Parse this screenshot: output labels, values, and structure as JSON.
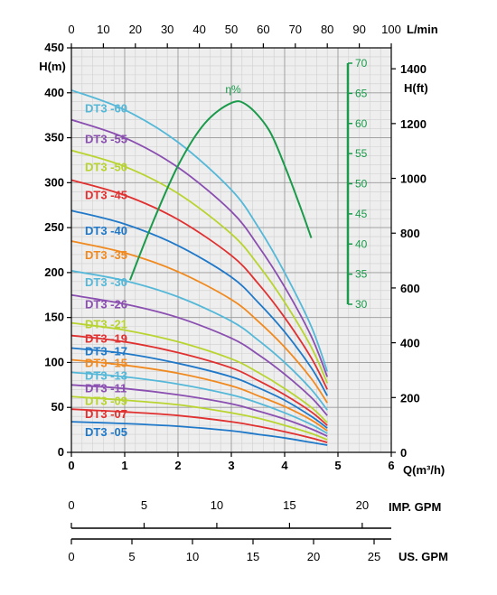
{
  "chart_data": {
    "type": "line",
    "title": "",
    "xlabel": "Q(m³/h)",
    "ylabel": "H(m)",
    "xlim": [
      0,
      6
    ],
    "ylim": [
      0,
      450
    ],
    "x_ticks": [
      0,
      1,
      2,
      3,
      4,
      5,
      6
    ],
    "y_ticks": [
      0,
      50,
      100,
      150,
      200,
      250,
      300,
      350,
      400,
      450
    ],
    "top_axis": {
      "label": "L/min",
      "ticks": [
        0,
        10,
        20,
        30,
        40,
        50,
        60,
        70,
        80,
        90,
        100
      ]
    },
    "right_axis": {
      "label": "H(ft)",
      "ticks": [
        0,
        200,
        400,
        600,
        800,
        1000,
        1200,
        1400
      ]
    },
    "bottom_axis_imp": {
      "label": "IMP. GPM",
      "ticks": [
        0,
        5,
        10,
        15,
        20
      ]
    },
    "bottom_axis_us": {
      "label": "US. GPM",
      "ticks": [
        0,
        5,
        10,
        15,
        20,
        25
      ]
    },
    "grid": true,
    "series": [
      {
        "name": "DT3 -05",
        "color": "#1f78c8",
        "label_h": 22,
        "x": [
          0,
          1,
          2,
          3,
          3.5,
          4,
          4.5,
          4.8
        ],
        "values": [
          34,
          32,
          29,
          24,
          20,
          16,
          11,
          8
        ]
      },
      {
        "name": "DT3 -07",
        "color": "#e03030",
        "label_h": 42,
        "x": [
          0,
          1,
          2,
          3,
          3.5,
          4,
          4.5,
          4.8
        ],
        "values": [
          48,
          45,
          41,
          34,
          29,
          23,
          16,
          11
        ]
      },
      {
        "name": "DT3 -09",
        "color": "#b8d430",
        "label_h": 57,
        "x": [
          0,
          1,
          2,
          3,
          3.5,
          4,
          4.5,
          4.8
        ],
        "values": [
          62,
          58,
          53,
          44,
          38,
          30,
          21,
          14
        ]
      },
      {
        "name": "DT3 -11",
        "color": "#8a4fb0",
        "label_h": 71,
        "x": [
          0,
          1,
          2,
          3,
          3.5,
          4,
          4.5,
          4.8
        ],
        "values": [
          75,
          71,
          64,
          54,
          46,
          37,
          26,
          18
        ]
      },
      {
        "name": "DT3 -13",
        "color": "#55b8d8",
        "label_h": 85,
        "x": [
          0,
          1,
          2,
          3,
          3.5,
          4,
          4.5,
          4.8
        ],
        "values": [
          89,
          84,
          76,
          64,
          55,
          44,
          31,
          21
        ]
      },
      {
        "name": "DT3 -15",
        "color": "#f08a20",
        "label_h": 99,
        "x": [
          0,
          1,
          2,
          3,
          3.5,
          4,
          4.5,
          4.8
        ],
        "values": [
          103,
          97,
          88,
          74,
          63,
          51,
          36,
          24
        ]
      },
      {
        "name": "DT3 -17",
        "color": "#1f78c8",
        "label_h": 112,
        "x": [
          0,
          1,
          2,
          3,
          3.5,
          4,
          4.5,
          4.8
        ],
        "values": [
          116,
          110,
          99,
          84,
          72,
          58,
          40,
          27
        ]
      },
      {
        "name": "DT3 -19",
        "color": "#e03030",
        "label_h": 126,
        "x": [
          0,
          1,
          2,
          3,
          3.5,
          4,
          4.5,
          4.8
        ],
        "values": [
          130,
          123,
          111,
          94,
          80,
          64,
          45,
          30
        ]
      },
      {
        "name": "DT3 -21",
        "color": "#b8d430",
        "label_h": 142,
        "x": [
          0,
          1,
          2,
          3,
          3.5,
          4,
          4.5,
          4.8
        ],
        "values": [
          144,
          136,
          123,
          104,
          89,
          71,
          50,
          33
        ]
      },
      {
        "name": "DT3 -26",
        "color": "#8a4fb0",
        "label_h": 164,
        "x": [
          0,
          1,
          2,
          3,
          3.5,
          4,
          4.5,
          4.8
        ],
        "values": [
          175,
          165,
          150,
          127,
          109,
          87,
          61,
          41
        ]
      },
      {
        "name": "DT3 -30",
        "color": "#55b8d8",
        "label_h": 189,
        "x": [
          0,
          1,
          2,
          3,
          3.5,
          4,
          4.5,
          4.8
        ],
        "values": [
          202,
          191,
          173,
          146,
          125,
          100,
          70,
          47
        ]
      },
      {
        "name": "DT3 -35",
        "color": "#f08a20",
        "label_h": 219,
        "x": [
          0,
          1,
          2,
          3,
          3.5,
          4,
          4.5,
          4.8
        ],
        "values": [
          235,
          222,
          201,
          170,
          146,
          117,
          82,
          55
        ]
      },
      {
        "name": "DT3 -40",
        "color": "#1f78c8",
        "label_h": 246,
        "x": [
          0,
          1,
          2,
          3,
          3.5,
          4,
          4.5,
          4.8
        ],
        "values": [
          269,
          254,
          230,
          195,
          167,
          134,
          94,
          63
        ]
      },
      {
        "name": "DT3 -45",
        "color": "#e03030",
        "label_h": 286,
        "x": [
          0,
          1,
          2,
          3,
          3.5,
          4,
          4.5,
          4.8
        ],
        "values": [
          303,
          286,
          259,
          219,
          188,
          150,
          105,
          70
        ]
      },
      {
        "name": "DT3 -50",
        "color": "#b8d430",
        "label_h": 317,
        "x": [
          0,
          1,
          2,
          3,
          3.5,
          4,
          4.5,
          4.8
        ],
        "values": [
          336,
          318,
          288,
          243,
          209,
          167,
          117,
          77
        ]
      },
      {
        "name": "DT3 -55",
        "color": "#8a4fb0",
        "label_h": 348,
        "x": [
          0,
          1,
          2,
          3,
          3.5,
          4,
          4.5,
          4.8
        ],
        "values": [
          370,
          350,
          317,
          268,
          230,
          184,
          129,
          84
        ]
      },
      {
        "name": "DT3 -60",
        "color": "#55b8d8",
        "label_h": 382,
        "x": [
          0,
          1,
          2,
          3,
          3.5,
          4,
          4.5,
          4.8
        ],
        "values": [
          403,
          381,
          345,
          292,
          251,
          200,
          140,
          90
        ]
      }
    ],
    "efficiency": {
      "label": "η%",
      "color": "#1a9a4a",
      "axis_ticks": [
        30,
        35,
        40,
        45,
        50,
        55,
        60,
        65,
        70
      ],
      "x": [
        1.1,
        1.5,
        2.0,
        2.5,
        3.0,
        3.3,
        3.7,
        4.0,
        4.3,
        4.5
      ],
      "values": [
        34,
        43,
        53,
        60,
        63.4,
        63,
        59,
        53,
        46,
        41
      ]
    }
  }
}
